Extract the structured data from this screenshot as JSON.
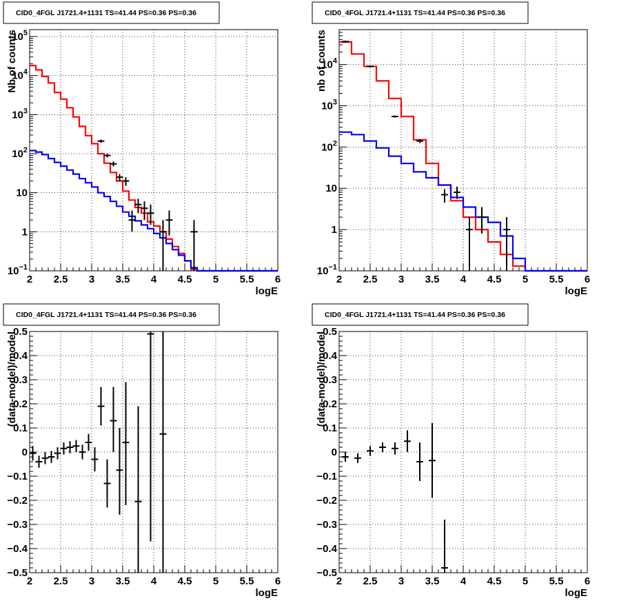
{
  "chart_data": [
    {
      "type": "line",
      "title": "CID0_4FGL J1721.4+1131 TS=41.44 PS=0.36 PS=0.36",
      "xlabel": "logE",
      "ylabel": "Nb of counts",
      "xlim": [
        2,
        6
      ],
      "ylim": [
        0.1,
        150000
      ],
      "yscale": "log",
      "grid": true,
      "xticks": [
        "2",
        "2.5",
        "3",
        "3.5",
        "4",
        "4.5",
        "5",
        "5.5",
        "6"
      ],
      "yticks": [
        {
          "v": 0.1,
          "base": "10",
          "exp": "−1"
        },
        {
          "v": 1,
          "label": "1"
        },
        {
          "v": 10,
          "label": "10"
        },
        {
          "v": 100,
          "base": "10",
          "exp": "2"
        },
        {
          "v": 1000,
          "base": "10",
          "exp": "3"
        },
        {
          "v": 10000,
          "base": "10",
          "exp": "4"
        },
        {
          "v": 100000,
          "base": "10",
          "exp": "5"
        }
      ],
      "series": [
        {
          "color": "#ff0000",
          "kind": "step",
          "edges": [
            2.0,
            2.1,
            2.2,
            2.3,
            2.4,
            2.5,
            2.6,
            2.7,
            2.8,
            2.9,
            3.0,
            3.1,
            3.2,
            3.3,
            3.4,
            3.5,
            3.6,
            3.7,
            3.8,
            3.9,
            4.0,
            4.1,
            4.2,
            4.3,
            4.4,
            4.5,
            4.6,
            4.7,
            4.8,
            4.9,
            5.0,
            5.1,
            5.2,
            5.3,
            5.4,
            5.5,
            5.6,
            5.7,
            5.8,
            5.9,
            6.0
          ],
          "values": [
            18000,
            14000,
            9500,
            6500,
            3700,
            2500,
            1500,
            870,
            500,
            290,
            180,
            100,
            57,
            33,
            20,
            11,
            6.5,
            4.2,
            3.0,
            1.8,
            1.4,
            1.0,
            0.65,
            0.42,
            0.28,
            0.18,
            0.11,
            0.1,
            0.1,
            0.1,
            0.1,
            0.1,
            0.1,
            0.1,
            0.1,
            0.1,
            0.1,
            0.1,
            0.1,
            0.1
          ]
        },
        {
          "color": "#0000ff",
          "kind": "step",
          "edges": [
            2.0,
            2.1,
            2.2,
            2.3,
            2.4,
            2.5,
            2.6,
            2.7,
            2.8,
            2.9,
            3.0,
            3.1,
            3.2,
            3.3,
            3.4,
            3.5,
            3.6,
            3.7,
            3.8,
            3.9,
            4.0,
            4.1,
            4.2,
            4.3,
            4.4,
            4.5,
            4.6,
            4.7,
            4.8,
            4.9,
            5.0,
            5.1,
            5.2,
            5.3,
            5.4,
            5.5,
            5.6,
            5.7,
            5.8,
            5.9,
            6.0
          ],
          "values": [
            120,
            110,
            95,
            75,
            60,
            48,
            38,
            30,
            23,
            18,
            14,
            10,
            8,
            6,
            4.5,
            3.2,
            2.5,
            1.9,
            1.5,
            1.2,
            0.9,
            0.7,
            0.5,
            0.35,
            0.25,
            0.18,
            0.12,
            0.1,
            0.1,
            0.1,
            0.1,
            0.1,
            0.1,
            0.1,
            0.1,
            0.1,
            0.1,
            0.1,
            0.1,
            0.1
          ]
        },
        {
          "color": "#000000",
          "kind": "points",
          "points": [
            {
              "x": 3.15,
              "y": 210,
              "ylo": 190,
              "yhi": 230
            },
            {
              "x": 3.25,
              "y": 90,
              "ylo": 80,
              "yhi": 100
            },
            {
              "x": 3.35,
              "y": 55,
              "ylo": 47,
              "yhi": 63
            },
            {
              "x": 3.45,
              "y": 25,
              "ylo": 20,
              "yhi": 30
            },
            {
              "x": 3.55,
              "y": 20,
              "ylo": 15,
              "yhi": 25
            },
            {
              "x": 3.65,
              "y": 2.0,
              "ylo": 1.0,
              "yhi": 3.5
            },
            {
              "x": 3.75,
              "y": 5,
              "ylo": 3,
              "yhi": 7
            },
            {
              "x": 3.85,
              "y": 4,
              "ylo": 2,
              "yhi": 6
            },
            {
              "x": 3.95,
              "y": 3,
              "ylo": 1.5,
              "yhi": 5
            },
            {
              "x": 4.15,
              "y": 1,
              "ylo": 0.1,
              "yhi": 2
            },
            {
              "x": 4.25,
              "y": 2,
              "ylo": 0.8,
              "yhi": 3.5
            },
            {
              "x": 4.65,
              "y": 1,
              "ylo": 0.1,
              "yhi": 2
            }
          ]
        }
      ]
    },
    {
      "type": "line",
      "title": "CID0_4FGL J1721.4+1131 TS=41.44 PS=0.36 PS=0.36",
      "xlabel": "logE",
      "ylabel": "nb of counts",
      "xlim": [
        2,
        6
      ],
      "ylim": [
        0.1,
        70000
      ],
      "yscale": "log",
      "grid": true,
      "xticks": [
        "2",
        "2.5",
        "3",
        "3.5",
        "4",
        "4.5",
        "5",
        "5.5",
        "6"
      ],
      "yticks": [
        {
          "v": 0.1,
          "base": "10",
          "exp": "−1"
        },
        {
          "v": 1,
          "label": "1"
        },
        {
          "v": 10,
          "label": "10"
        },
        {
          "v": 100,
          "base": "10",
          "exp": "2"
        },
        {
          "v": 1000,
          "base": "10",
          "exp": "3"
        },
        {
          "v": 10000,
          "base": "10",
          "exp": "4"
        }
      ],
      "series": [
        {
          "color": "#ff0000",
          "kind": "step",
          "edges": [
            2.0,
            2.2,
            2.4,
            2.6,
            2.8,
            3.0,
            3.2,
            3.4,
            3.6,
            3.8,
            4.0,
            4.2,
            4.4,
            4.6,
            4.8,
            5.0,
            5.2,
            5.4,
            5.6,
            5.8,
            6.0
          ],
          "values": [
            35000,
            18000,
            9000,
            4000,
            1500,
            550,
            150,
            40,
            12,
            5,
            2,
            1,
            0.5,
            0.25,
            0.13,
            0.1,
            0.1,
            0.1,
            0.1,
            0.1
          ]
        },
        {
          "color": "#0000ff",
          "kind": "step",
          "edges": [
            2.0,
            2.2,
            2.4,
            2.6,
            2.8,
            3.0,
            3.2,
            3.4,
            3.6,
            3.8,
            4.0,
            4.2,
            4.4,
            4.6,
            4.8,
            5.0,
            5.2,
            5.4,
            5.6,
            5.8,
            6.0
          ],
          "values": [
            230,
            200,
            140,
            95,
            60,
            40,
            25,
            18,
            12,
            6,
            3.5,
            2,
            1.5,
            0.7,
            0.2,
            0.1,
            0.1,
            0.1,
            0.1,
            0.1
          ]
        },
        {
          "color": "#000000",
          "kind": "points",
          "points": [
            {
              "x": 2.1,
              "y": 36000,
              "ylo": 34000,
              "yhi": 38000
            },
            {
              "x": 2.5,
              "y": 9000,
              "ylo": 8500,
              "yhi": 9500
            },
            {
              "x": 2.9,
              "y": 550,
              "ylo": 520,
              "yhi": 580
            },
            {
              "x": 3.3,
              "y": 140,
              "ylo": 125,
              "yhi": 155
            },
            {
              "x": 3.7,
              "y": 7,
              "ylo": 4.5,
              "yhi": 9.5
            },
            {
              "x": 3.9,
              "y": 8,
              "ylo": 5.5,
              "yhi": 11
            },
            {
              "x": 4.1,
              "y": 1,
              "ylo": 0.1,
              "yhi": 2
            },
            {
              "x": 4.3,
              "y": 2,
              "ylo": 0.8,
              "yhi": 3.5
            },
            {
              "x": 4.7,
              "y": 1,
              "ylo": 0.1,
              "yhi": 2
            }
          ]
        }
      ]
    },
    {
      "type": "scatter",
      "title": "CID0_4FGL J1721.4+1131 TS=41.44 PS=0.36 PS=0.36",
      "xlabel": "logE",
      "ylabel": "(data-model)/model",
      "xlim": [
        2,
        6
      ],
      "ylim": [
        -0.5,
        0.5
      ],
      "yscale": "linear",
      "grid": true,
      "xticks": [
        "2",
        "2.5",
        "3",
        "3.5",
        "4",
        "4.5",
        "5",
        "5.5",
        "6"
      ],
      "yticks": [
        {
          "v": 0.5,
          "label": "0.5"
        },
        {
          "v": 0.4,
          "label": "0.4"
        },
        {
          "v": 0.3,
          "label": "0.3"
        },
        {
          "v": 0.2,
          "label": "0.2"
        },
        {
          "v": 0.1,
          "label": "0.1"
        },
        {
          "v": 0,
          "label": "0"
        },
        {
          "v": -0.1,
          "label": "−0.1"
        },
        {
          "v": -0.2,
          "label": "−0.2"
        },
        {
          "v": -0.3,
          "label": "−0.3"
        },
        {
          "v": -0.4,
          "label": "−0.4"
        },
        {
          "v": -0.5,
          "label": "−0.5"
        }
      ],
      "series": [
        {
          "color": "#000000",
          "kind": "points",
          "points": [
            {
              "x": 2.05,
              "y": -0.005,
              "ylo": -0.035,
              "yhi": 0.025
            },
            {
              "x": 2.15,
              "y": -0.04,
              "ylo": -0.065,
              "yhi": -0.015
            },
            {
              "x": 2.25,
              "y": -0.025,
              "ylo": -0.05,
              "yhi": 0.0
            },
            {
              "x": 2.35,
              "y": -0.02,
              "ylo": -0.045,
              "yhi": 0.005
            },
            {
              "x": 2.45,
              "y": -0.005,
              "ylo": -0.03,
              "yhi": 0.02
            },
            {
              "x": 2.55,
              "y": 0.015,
              "ylo": -0.01,
              "yhi": 0.04
            },
            {
              "x": 2.65,
              "y": 0.02,
              "ylo": -0.005,
              "yhi": 0.045
            },
            {
              "x": 2.75,
              "y": 0.025,
              "ylo": 0.0,
              "yhi": 0.05
            },
            {
              "x": 2.85,
              "y": 0.0,
              "ylo": -0.03,
              "yhi": 0.03
            },
            {
              "x": 2.95,
              "y": 0.04,
              "ylo": 0.005,
              "yhi": 0.075
            },
            {
              "x": 3.05,
              "y": -0.03,
              "ylo": -0.08,
              "yhi": 0.02
            },
            {
              "x": 3.15,
              "y": 0.19,
              "ylo": 0.11,
              "yhi": 0.27
            },
            {
              "x": 3.25,
              "y": -0.13,
              "ylo": -0.23,
              "yhi": -0.03
            },
            {
              "x": 3.35,
              "y": 0.13,
              "ylo": 0.0,
              "yhi": 0.27
            },
            {
              "x": 3.45,
              "y": -0.075,
              "ylo": -0.26,
              "yhi": 0.1
            },
            {
              "x": 3.55,
              "y": 0.04,
              "ylo": -0.22,
              "yhi": 0.29
            },
            {
              "x": 3.75,
              "y": -0.205,
              "ylo": -0.5,
              "yhi": 0.19
            },
            {
              "x": 3.95,
              "y": 0.49,
              "ylo": -0.37,
              "yhi": 0.5
            },
            {
              "x": 4.15,
              "y": 0.075,
              "ylo": -0.5,
              "yhi": 0.5
            }
          ]
        }
      ]
    },
    {
      "type": "scatter",
      "title": "CID0_4FGL J1721.4+1131 TS=41.44 PS=0.36 PS=0.36",
      "xlabel": "logE",
      "ylabel": "(data-model)/model",
      "xlim": [
        2,
        6
      ],
      "ylim": [
        -0.5,
        0.5
      ],
      "yscale": "linear",
      "grid": true,
      "xticks": [
        "2",
        "2.5",
        "3",
        "3.5",
        "4",
        "4.5",
        "5",
        "5.5",
        "6"
      ],
      "yticks": [
        {
          "v": 0.5,
          "label": "0.5"
        },
        {
          "v": 0.4,
          "label": "0.4"
        },
        {
          "v": 0.3,
          "label": "0.3"
        },
        {
          "v": 0.2,
          "label": "0.2"
        },
        {
          "v": 0.1,
          "label": "0.1"
        },
        {
          "v": 0,
          "label": "0"
        },
        {
          "v": -0.1,
          "label": "−0.1"
        },
        {
          "v": -0.2,
          "label": "−0.2"
        },
        {
          "v": -0.3,
          "label": "−0.3"
        },
        {
          "v": -0.4,
          "label": "−0.4"
        },
        {
          "v": -0.5,
          "label": "−0.5"
        }
      ],
      "series": [
        {
          "color": "#000000",
          "kind": "points",
          "points": [
            {
              "x": 2.1,
              "y": -0.02,
              "ylo": -0.04,
              "yhi": 0.0
            },
            {
              "x": 2.3,
              "y": -0.025,
              "ylo": -0.045,
              "yhi": -0.005
            },
            {
              "x": 2.5,
              "y": 0.005,
              "ylo": -0.015,
              "yhi": 0.025
            },
            {
              "x": 2.7,
              "y": 0.02,
              "ylo": 0.0,
              "yhi": 0.04
            },
            {
              "x": 2.9,
              "y": 0.015,
              "ylo": -0.01,
              "yhi": 0.04
            },
            {
              "x": 3.1,
              "y": 0.045,
              "ylo": 0.0,
              "yhi": 0.09
            },
            {
              "x": 3.3,
              "y": -0.04,
              "ylo": -0.12,
              "yhi": 0.04
            },
            {
              "x": 3.5,
              "y": -0.035,
              "ylo": -0.19,
              "yhi": 0.12
            },
            {
              "x": 3.7,
              "y": -0.48,
              "ylo": -0.5,
              "yhi": -0.28
            }
          ]
        }
      ]
    }
  ]
}
